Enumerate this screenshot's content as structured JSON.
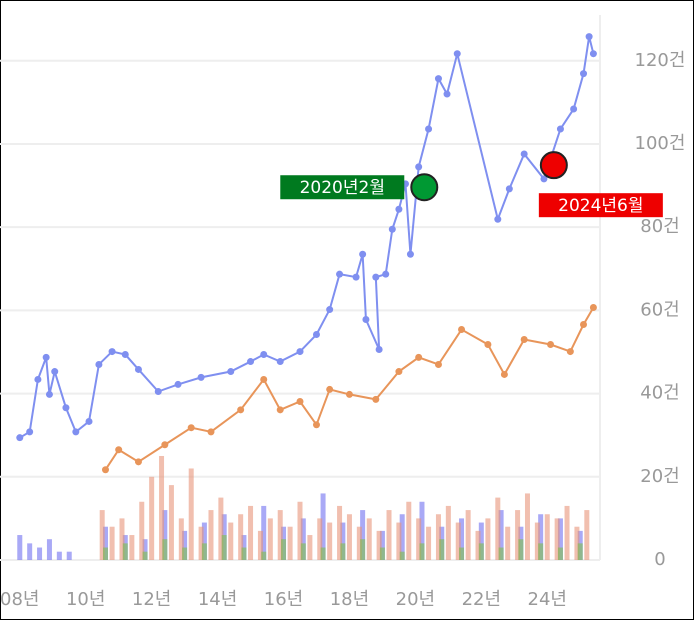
{
  "chart_data": {
    "type": "line",
    "xlim": [
      7.4,
      25.6
    ],
    "xticks": [
      {
        "value": 8,
        "label": "08년"
      },
      {
        "value": 10,
        "label": "10년"
      },
      {
        "value": 12,
        "label": "12년"
      },
      {
        "value": 14,
        "label": "14년"
      },
      {
        "value": 16,
        "label": "16년"
      },
      {
        "value": 18,
        "label": "18년"
      },
      {
        "value": 20,
        "label": "20년"
      },
      {
        "value": 22,
        "label": "22년"
      },
      {
        "value": 24,
        "label": "24년"
      }
    ],
    "ylim": [
      0,
      131
    ],
    "yticks": [
      0,
      {
        "value": 20,
        "label": "20건"
      },
      {
        "value": 40,
        "label": "40건"
      },
      {
        "value": 60,
        "label": "60건"
      },
      {
        "value": 80,
        "label": "80건"
      },
      {
        "value": 100,
        "label": "100건"
      },
      {
        "value": 120,
        "label": "120건"
      }
    ],
    "grid": true,
    "series": [
      {
        "type": "bar",
        "color": "#6f6ff0",
        "x": [
          8.0,
          8.3,
          8.6,
          8.9,
          9.2,
          9.5,
          10.6,
          11.2,
          11.8,
          12.4,
          13.0,
          13.6,
          14.2,
          14.8,
          15.4,
          16.0,
          16.6,
          17.2,
          17.8,
          18.4,
          19.0,
          19.6,
          20.2,
          20.8,
          21.4,
          22.0,
          22.6,
          23.2,
          23.8,
          24.4,
          25.0
        ],
        "values": [
          6,
          4,
          3,
          5,
          2,
          2,
          8,
          6,
          5,
          12,
          7,
          9,
          11,
          6,
          13,
          8,
          10,
          16,
          9,
          12,
          7,
          11,
          14,
          8,
          10,
          9,
          12,
          8,
          11,
          10,
          7
        ]
      },
      {
        "type": "bar",
        "color": "#e8957a",
        "x": [
          10.5,
          10.8,
          11.1,
          11.4,
          11.7,
          12.0,
          12.3,
          12.6,
          12.9,
          13.2,
          13.5,
          13.8,
          14.1,
          14.4,
          14.7,
          15.0,
          15.3,
          15.6,
          15.9,
          16.2,
          16.5,
          16.8,
          17.1,
          17.4,
          17.7,
          18.0,
          18.3,
          18.6,
          18.9,
          19.2,
          19.5,
          19.8,
          20.1,
          20.4,
          20.7,
          21.0,
          21.3,
          21.6,
          21.9,
          22.2,
          22.5,
          22.8,
          23.1,
          23.4,
          23.7,
          24.0,
          24.3,
          24.6,
          24.9,
          25.2
        ],
        "values": [
          12,
          8,
          10,
          6,
          14,
          20,
          25,
          18,
          10,
          22,
          8,
          12,
          15,
          9,
          11,
          13,
          7,
          10,
          12,
          8,
          14,
          6,
          10,
          9,
          13,
          11,
          8,
          10,
          7,
          12,
          9,
          14,
          10,
          8,
          11,
          13,
          9,
          12,
          7,
          10,
          15,
          8,
          12,
          16,
          9,
          11,
          10,
          13,
          8,
          12
        ]
      },
      {
        "type": "bar",
        "color": "#7fc24a",
        "x": [
          10.6,
          11.2,
          11.8,
          12.4,
          13.0,
          13.6,
          14.2,
          14.8,
          15.4,
          16.0,
          16.6,
          17.2,
          17.8,
          18.4,
          19.0,
          19.6,
          20.2,
          20.8,
          21.4,
          22.0,
          22.6,
          23.2,
          23.8,
          24.4,
          25.0
        ],
        "values": [
          3,
          4,
          2,
          5,
          3,
          4,
          6,
          3,
          2,
          5,
          4,
          3,
          4,
          5,
          3,
          2,
          4,
          5,
          3,
          4,
          3,
          5,
          4,
          3,
          4
        ]
      },
      {
        "type": "line",
        "color": "#7f8ff0",
        "x": [
          8.0,
          8.3,
          8.55,
          8.8,
          8.9,
          9.06,
          9.4,
          9.7,
          10.1,
          10.4,
          10.8,
          11.2,
          11.6,
          12.2,
          12.8,
          13.5,
          14.4,
          15.0,
          15.4,
          15.9,
          16.5,
          17.0,
          17.4,
          17.7,
          18.2,
          18.4,
          18.5,
          18.9,
          18.8,
          19.1,
          19.3,
          19.5,
          19.7,
          19.85,
          20.1,
          20.4,
          20.7,
          20.96,
          21.27,
          22.5,
          22.85,
          23.3,
          23.9,
          24.4,
          24.8,
          25.1,
          25.27,
          25.4
        ],
        "values": [
          29.4,
          30.8,
          43.4,
          48.7,
          39.8,
          45.3,
          36.6,
          30.8,
          33.3,
          47,
          50.1,
          49.4,
          45.8,
          40.5,
          42.2,
          43.9,
          45.3,
          47.7,
          49.4,
          47.7,
          50.1,
          54.2,
          60.2,
          68.7,
          68,
          73.5,
          57.8,
          50.6,
          68,
          68.7,
          79.5,
          84.3,
          90.4,
          73.5,
          94.5,
          103.6,
          115.7,
          112,
          121.7,
          81.9,
          89.2,
          97.6,
          91.6,
          103.6,
          108.4,
          116.9,
          125.8,
          121.7
        ]
      },
      {
        "type": "line",
        "color": "#e8955a",
        "x": [
          10.6,
          11.0,
          11.6,
          12.4,
          13.2,
          13.8,
          14.7,
          15.4,
          15.9,
          16.5,
          17.0,
          17.4,
          18.0,
          18.8,
          19.5,
          20.1,
          20.7,
          21.4,
          22.2,
          22.7,
          23.3,
          24.1,
          24.7,
          25.1,
          25.4
        ],
        "values": [
          21.7,
          26.5,
          23.6,
          27.7,
          31.8,
          30.8,
          36.1,
          43.4,
          36.1,
          38.1,
          32.5,
          41,
          39.8,
          38.6,
          45.3,
          48.7,
          47,
          55.4,
          51.8,
          44.6,
          53,
          51.8,
          50.1,
          56.6,
          60.7
        ]
      }
    ],
    "annotations": [
      {
        "text": "2020년2월",
        "x": 20.27,
        "y": 89.6,
        "color": "#009933",
        "label_color": "#007a1f",
        "side": "left"
      },
      {
        "text": "2024년6월",
        "x": 24.2,
        "y": 94.9,
        "color": "#ee0000",
        "label_color": "#ee0000",
        "side": "below"
      }
    ]
  }
}
